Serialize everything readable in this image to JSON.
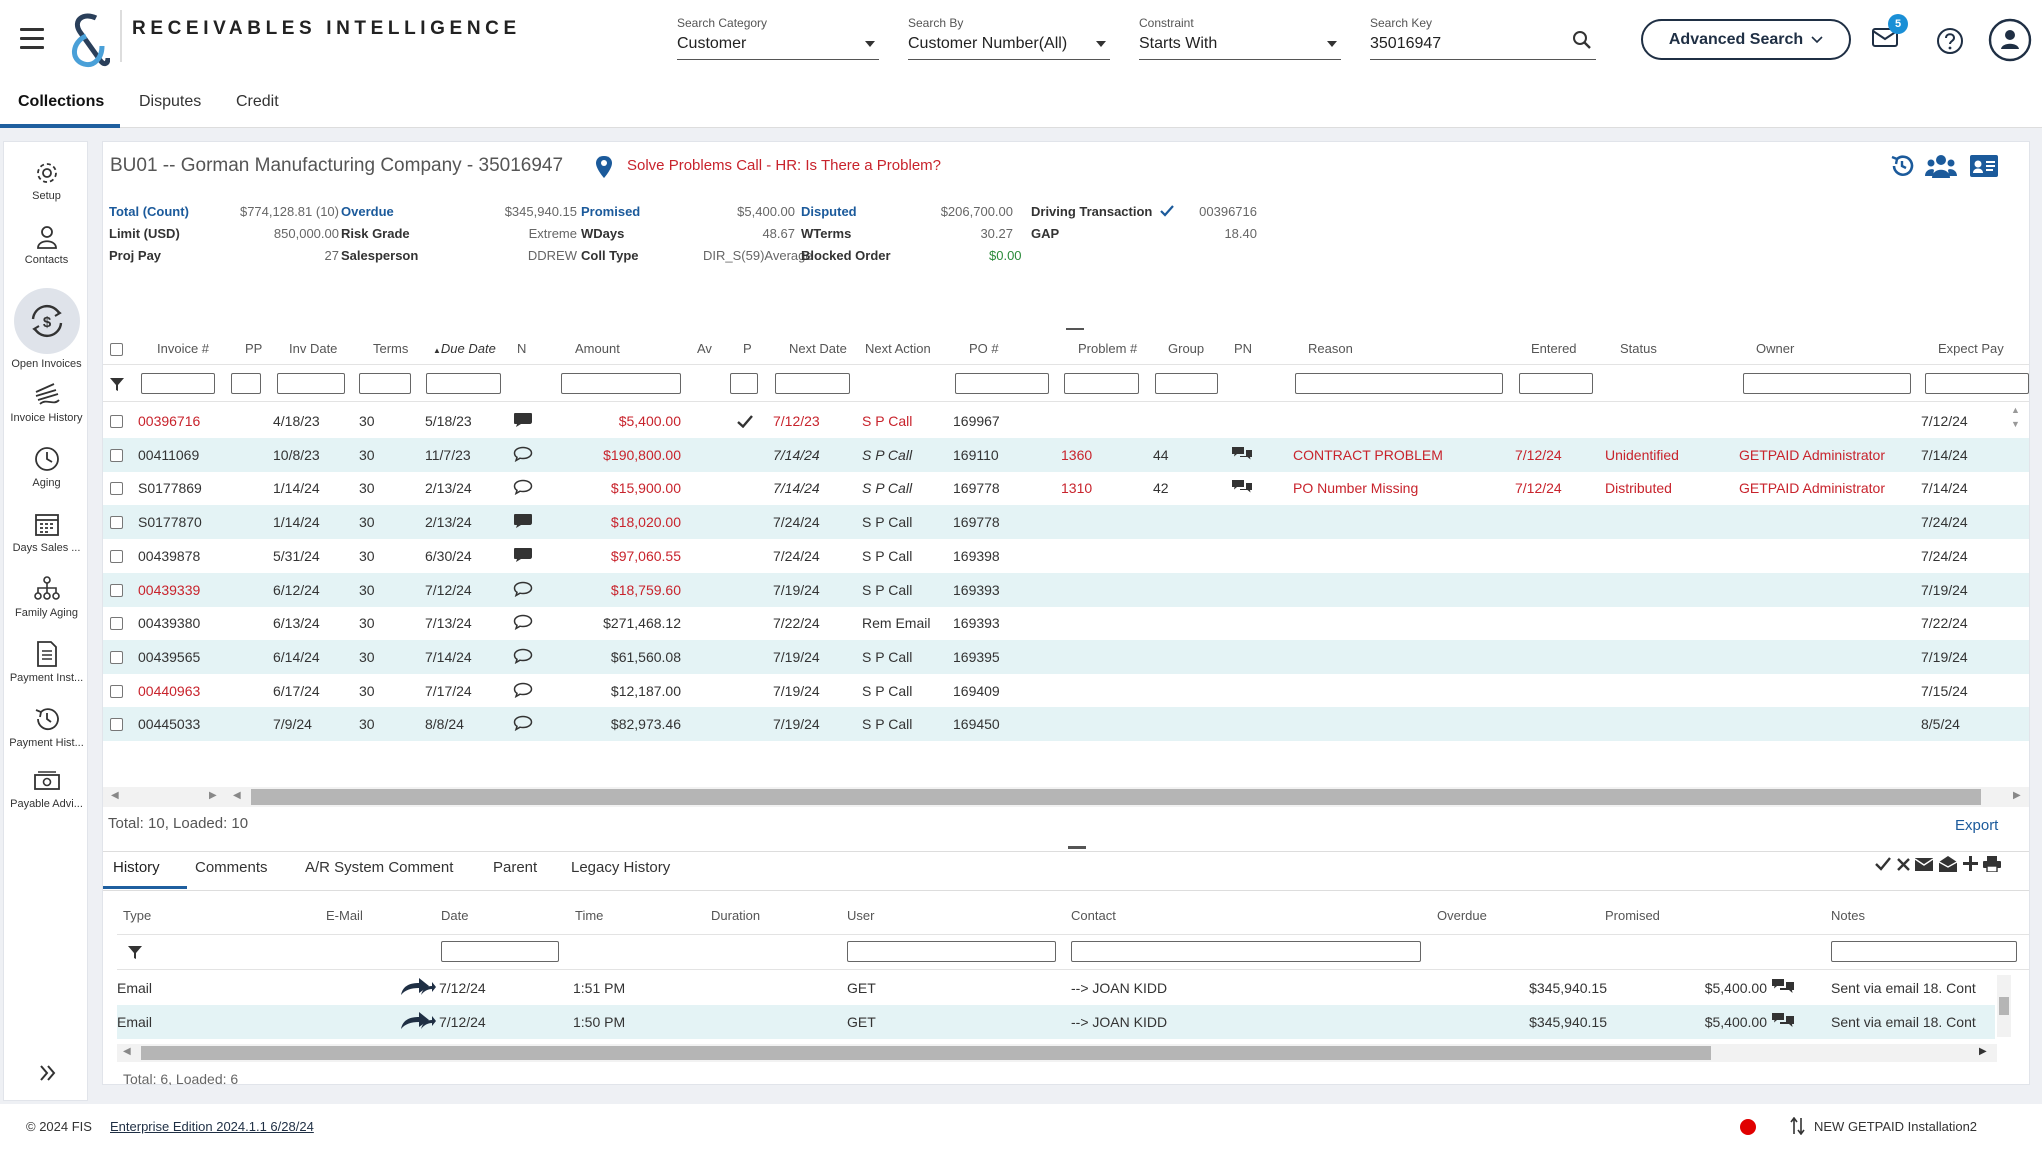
{
  "header": {
    "brand": "RECEIVABLES INTELLIGENCE",
    "search_category": {
      "label": "Search Category",
      "value": "Customer"
    },
    "search_by": {
      "label": "Search By",
      "value": "Customer Number(All)"
    },
    "constraint": {
      "label": "Constraint",
      "value": "Starts With"
    },
    "search_key": {
      "label": "Search Key",
      "value": "35016947"
    },
    "advanced_search": "Advanced Search",
    "mail_badge": "5"
  },
  "main_tabs": [
    "Collections",
    "Disputes",
    "Credit"
  ],
  "rail": [
    "Setup",
    "Contacts",
    "Open Invoices",
    "Invoice History",
    "Aging",
    "Days Sales ...",
    "Family Aging",
    "Payment Inst...",
    "Payment Hist...",
    "Payable Advi..."
  ],
  "customer": {
    "title": "BU01 -- Gorman Manufacturing Company - 35016947",
    "alert": "Solve Problems Call - HR: Is There a Problem?"
  },
  "summary": {
    "total_count_label": "Total (Count)",
    "total_count": "$774,128.81 (10)",
    "overdue_label": "Overdue",
    "overdue": "$345,940.15",
    "promised_label": "Promised",
    "promised": "$5,400.00",
    "disputed_label": "Disputed",
    "disputed": "$206,700.00",
    "driving_label": "Driving Transaction",
    "driving": "00396716",
    "limit_label": "Limit (USD)",
    "limit": "850,000.00",
    "risk_label": "Risk Grade",
    "risk": "Extreme",
    "wdays_label": "WDays",
    "wdays": "48.67",
    "wterms_label": "WTerms",
    "wterms": "30.27",
    "gap_label": "GAP",
    "gap": "18.40",
    "projpay_label": "Proj Pay",
    "projpay": "27",
    "sales_label": "Salesperson",
    "sales": "DDREW",
    "colltype_label": "Coll Type",
    "colltype": "DIR_S(59)Average",
    "blocked_label": "Blocked Order",
    "blocked": "$0.00"
  },
  "invoice_columns": [
    "Invoice #",
    "PP",
    "Inv Date",
    "Terms",
    "Due Date",
    "N",
    "Amount",
    "Av",
    "P",
    "Next Date",
    "Next Action",
    "PO #",
    "Problem #",
    "Group",
    "PN",
    "Reason",
    "Entered",
    "Status",
    "Owner",
    "Expect Pay"
  ],
  "invoices": [
    {
      "inv": "00396716",
      "inv_red": true,
      "inv_date": "4/18/23",
      "terms": "30",
      "due": "5/18/23",
      "note": "chat-filled",
      "amount": "$5,400.00",
      "amount_red": true,
      "p_check": true,
      "next_date": "7/12/23",
      "next_red": true,
      "next_italic": false,
      "action": "S P Call",
      "po": "169967",
      "problem": "",
      "group": "",
      "pn": false,
      "reason": "",
      "entered": "",
      "status": "",
      "owner": "",
      "expect": "7/12/24"
    },
    {
      "inv": "00411069",
      "inv_red": false,
      "inv_date": "10/8/23",
      "terms": "30",
      "due": "11/7/23",
      "note": "chat-outline",
      "amount": "$190,800.00",
      "amount_red": true,
      "p_check": false,
      "next_date": "7/14/24",
      "next_red": false,
      "next_italic": true,
      "action": "S P Call",
      "po": "169110",
      "problem": "1360",
      "group": "44",
      "pn": true,
      "reason": "CONTRACT PROBLEM",
      "entered": "7/12/24",
      "status": "Unidentified",
      "owner": "GETPAID Administrator",
      "expect": "7/14/24"
    },
    {
      "inv": "S0177869",
      "inv_red": false,
      "inv_date": "1/14/24",
      "terms": "30",
      "due": "2/13/24",
      "note": "chat-outline",
      "amount": "$15,900.00",
      "amount_red": true,
      "p_check": false,
      "next_date": "7/14/24",
      "next_red": false,
      "next_italic": true,
      "action": "S P Call",
      "po": "169778",
      "problem": "1310",
      "group": "42",
      "pn": true,
      "reason": "PO Number Missing",
      "entered": "7/12/24",
      "status": "Distributed",
      "owner": "GETPAID Administrator",
      "expect": "7/14/24"
    },
    {
      "inv": "S0177870",
      "inv_red": false,
      "inv_date": "1/14/24",
      "terms": "30",
      "due": "2/13/24",
      "note": "chat-filled",
      "amount": "$18,020.00",
      "amount_red": true,
      "p_check": false,
      "next_date": "7/24/24",
      "next_red": false,
      "next_italic": false,
      "action": "S P Call",
      "po": "169778",
      "problem": "",
      "group": "",
      "pn": false,
      "reason": "",
      "entered": "",
      "status": "",
      "owner": "",
      "expect": "7/24/24"
    },
    {
      "inv": "00439878",
      "inv_red": false,
      "inv_date": "5/31/24",
      "terms": "30",
      "due": "6/30/24",
      "note": "chat-filled",
      "amount": "$97,060.55",
      "amount_red": true,
      "p_check": false,
      "next_date": "7/24/24",
      "next_red": false,
      "next_italic": false,
      "action": "S P Call",
      "po": "169398",
      "problem": "",
      "group": "",
      "pn": false,
      "reason": "",
      "entered": "",
      "status": "",
      "owner": "",
      "expect": "7/24/24"
    },
    {
      "inv": "00439339",
      "inv_red": true,
      "inv_date": "6/12/24",
      "terms": "30",
      "due": "7/12/24",
      "note": "chat-outline",
      "amount": "$18,759.60",
      "amount_red": true,
      "p_check": false,
      "next_date": "7/19/24",
      "next_red": false,
      "next_italic": false,
      "action": "S P Call",
      "po": "169393",
      "problem": "",
      "group": "",
      "pn": false,
      "reason": "",
      "entered": "",
      "status": "",
      "owner": "",
      "expect": "7/19/24"
    },
    {
      "inv": "00439380",
      "inv_red": false,
      "inv_date": "6/13/24",
      "terms": "30",
      "due": "7/13/24",
      "note": "chat-outline",
      "amount": "$271,468.12",
      "amount_red": false,
      "p_check": false,
      "next_date": "7/22/24",
      "next_red": false,
      "next_italic": false,
      "action": "Rem Email",
      "po": "169393",
      "problem": "",
      "group": "",
      "pn": false,
      "reason": "",
      "entered": "",
      "status": "",
      "owner": "",
      "expect": "7/22/24"
    },
    {
      "inv": "00439565",
      "inv_red": false,
      "inv_date": "6/14/24",
      "terms": "30",
      "due": "7/14/24",
      "note": "chat-outline",
      "amount": "$61,560.08",
      "amount_red": false,
      "p_check": false,
      "next_date": "7/19/24",
      "next_red": false,
      "next_italic": false,
      "action": "S P Call",
      "po": "169395",
      "problem": "",
      "group": "",
      "pn": false,
      "reason": "",
      "entered": "",
      "status": "",
      "owner": "",
      "expect": "7/19/24"
    },
    {
      "inv": "00440963",
      "inv_red": true,
      "inv_date": "6/17/24",
      "terms": "30",
      "due": "7/17/24",
      "note": "chat-outline",
      "amount": "$12,187.00",
      "amount_red": false,
      "p_check": false,
      "next_date": "7/19/24",
      "next_red": false,
      "next_italic": false,
      "action": "S P Call",
      "po": "169409",
      "problem": "",
      "group": "",
      "pn": false,
      "reason": "",
      "entered": "",
      "status": "",
      "owner": "",
      "expect": "7/15/24"
    },
    {
      "inv": "00445033",
      "inv_red": false,
      "inv_date": "7/9/24",
      "terms": "30",
      "due": "8/8/24",
      "note": "chat-outline",
      "amount": "$82,973.46",
      "amount_red": false,
      "p_check": false,
      "next_date": "7/19/24",
      "next_red": false,
      "next_italic": false,
      "action": "S P Call",
      "po": "169450",
      "problem": "",
      "group": "",
      "pn": false,
      "reason": "",
      "entered": "",
      "status": "",
      "owner": "",
      "expect": "8/5/24"
    }
  ],
  "grid_footer": {
    "total": "Total: 10, Loaded: 10",
    "export": "Export"
  },
  "bottom_tabs": [
    "History",
    "Comments",
    "A/R System Comment",
    "Parent",
    "Legacy History"
  ],
  "history_columns": [
    "Type",
    "E-Mail",
    "Date",
    "Time",
    "Duration",
    "User",
    "Contact",
    "Overdue",
    "Promised",
    "Notes"
  ],
  "history": [
    {
      "type": "Email",
      "date": "7/12/24",
      "time": "1:51 PM",
      "user": "GET",
      "contact": "--> JOAN KIDD",
      "overdue": "$345,940.15",
      "promised": "$5,400.00",
      "notes": "Sent via email 18. Cont"
    },
    {
      "type": "Email",
      "date": "7/12/24",
      "time": "1:50 PM",
      "user": "GET",
      "contact": "--> JOAN KIDD",
      "overdue": "$345,940.15",
      "promised": "$5,400.00",
      "notes": "Sent via email 18. Cont"
    }
  ],
  "history_footer": "Total: 6, Loaded: 6",
  "footer": {
    "copyright": "© 2024 FIS",
    "edition": "Enterprise Edition 2024.1.1 6/28/24",
    "installation": "NEW GETPAID Installation2"
  },
  "colors": {
    "accent": "#1b5a9b",
    "alert_red": "#c8232c",
    "row_alt": "#e4f3f5",
    "navy": "#1f2f44"
  }
}
